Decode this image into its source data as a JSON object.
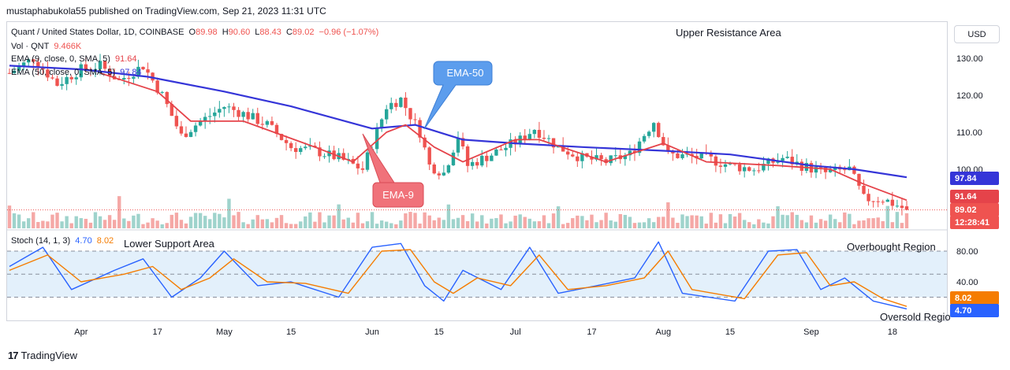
{
  "header": {
    "publisher_line": "mustaphabukola55 published on TradingView.com, Sep 21, 2023 11:31 UTC"
  },
  "legend": {
    "symbol": "Quant / United States Dollar, 1D, COINBASE",
    "o_label": "O",
    "o_value": "89.98",
    "h_label": "H",
    "h_value": "90.60",
    "l_label": "L",
    "l_value": "88.43",
    "c_label": "C",
    "c_value": "89.02",
    "change": "−0.96 (−1.07%)",
    "vol_label": "Vol · QNT",
    "vol_value": "9.466K",
    "ema9_label": "EMA (9, close, 0, SMA, 5)",
    "ema9_value": "91.64",
    "ema50_label": "EMA (50, close, 0, SMA, 5)",
    "ema50_value": "97.84"
  },
  "stoch_legend": {
    "label": "Stoch (14, 1, 3)",
    "k_value": "4.70",
    "d_value": "8.02"
  },
  "currency_button": "USD",
  "badges": {
    "ema50": "97.84",
    "ema9": "91.64",
    "last_price": "89.02",
    "countdown": "12:28:41",
    "stoch_d": "8.02",
    "stoch_k": "4.70"
  },
  "annotations": {
    "upper_resistance": "Upper Resistance Area",
    "lower_support": "Lower Support Area",
    "overbought": "Overbought Region",
    "oversold": "Oversold Regio",
    "ema50_callout": "EMA-50",
    "ema9_callout": "EMA-9"
  },
  "footer": {
    "brand": "TradingView",
    "logo_glyph": "17"
  },
  "colors": {
    "up": "#26a69a",
    "down": "#ef5350",
    "ema9": "#e5434a",
    "ema50": "#3535d8",
    "stoch_k": "#2962ff",
    "stoch_d": "#f57c00",
    "callout_blue": "#5c9ded",
    "callout_red": "#f0727a"
  },
  "chart_data": [
    {
      "type": "candlestick",
      "title": "Quant / United States Dollar, 1D, COINBASE",
      "y_axis_ticks": [
        "130.00",
        "120.00",
        "110.00",
        "100.00"
      ],
      "ylim": [
        86,
        133
      ],
      "x_axis_ticks": [
        "Apr",
        "17",
        "May",
        "15",
        "Jun",
        "15",
        "Jul",
        "17",
        "Aug",
        "15",
        "Sep",
        "18"
      ],
      "last_ohlc": {
        "open": 89.98,
        "high": 90.6,
        "low": 88.43,
        "close": 89.02
      },
      "close_anchors": [
        {
          "date": "2023-03-17",
          "close": 126
        },
        {
          "date": "2023-03-22",
          "close": 130
        },
        {
          "date": "2023-03-27",
          "close": 123
        },
        {
          "date": "2023-04-01",
          "close": 127
        },
        {
          "date": "2023-04-05",
          "close": 128
        },
        {
          "date": "2023-04-09",
          "close": 124
        },
        {
          "date": "2023-04-14",
          "close": 128
        },
        {
          "date": "2023-04-18",
          "close": 120
        },
        {
          "date": "2023-04-22",
          "close": 109
        },
        {
          "date": "2023-04-25",
          "close": 112
        },
        {
          "date": "2023-05-01",
          "close": 117
        },
        {
          "date": "2023-05-05",
          "close": 115
        },
        {
          "date": "2023-05-10",
          "close": 112
        },
        {
          "date": "2023-05-15",
          "close": 106
        },
        {
          "date": "2023-05-20",
          "close": 105
        },
        {
          "date": "2023-05-25",
          "close": 103
        },
        {
          "date": "2023-05-30",
          "close": 100
        },
        {
          "date": "2023-06-04",
          "close": 117
        },
        {
          "date": "2023-06-07",
          "close": 119
        },
        {
          "date": "2023-06-11",
          "close": 110
        },
        {
          "date": "2023-06-13",
          "close": 101
        },
        {
          "date": "2023-06-16",
          "close": 99
        },
        {
          "date": "2023-06-19",
          "close": 109
        },
        {
          "date": "2023-06-21",
          "close": 101
        },
        {
          "date": "2023-06-26",
          "close": 104
        },
        {
          "date": "2023-07-02",
          "close": 108
        },
        {
          "date": "2023-07-05",
          "close": 111
        },
        {
          "date": "2023-07-10",
          "close": 106
        },
        {
          "date": "2023-07-15",
          "close": 103
        },
        {
          "date": "2023-07-20",
          "close": 102
        },
        {
          "date": "2023-07-25",
          "close": 104
        },
        {
          "date": "2023-07-30",
          "close": 113
        },
        {
          "date": "2023-08-02",
          "close": 104
        },
        {
          "date": "2023-08-10",
          "close": 103
        },
        {
          "date": "2023-08-15",
          "close": 101
        },
        {
          "date": "2023-08-20",
          "close": 100
        },
        {
          "date": "2023-08-26",
          "close": 103
        },
        {
          "date": "2023-08-30",
          "close": 101
        },
        {
          "date": "2023-09-04",
          "close": 99
        },
        {
          "date": "2023-09-09",
          "close": 100
        },
        {
          "date": "2023-09-12",
          "close": 92
        },
        {
          "date": "2023-09-16",
          "close": 92
        },
        {
          "date": "2023-09-21",
          "close": 89.02
        }
      ],
      "ema9": [
        {
          "date": "2023-04-05",
          "value": 126
        },
        {
          "date": "2023-04-17",
          "value": 121
        },
        {
          "date": "2023-04-24",
          "value": 113
        },
        {
          "date": "2023-05-05",
          "value": 113
        },
        {
          "date": "2023-05-20",
          "value": 106
        },
        {
          "date": "2023-05-28",
          "value": 102
        },
        {
          "date": "2023-06-04",
          "value": 110
        },
        {
          "date": "2023-06-08",
          "value": 112
        },
        {
          "date": "2023-06-14",
          "value": 106
        },
        {
          "date": "2023-06-20",
          "value": 102
        },
        {
          "date": "2023-07-01",
          "value": 108
        },
        {
          "date": "2023-07-06",
          "value": 108
        },
        {
          "date": "2023-07-20",
          "value": 102
        },
        {
          "date": "2023-08-01",
          "value": 107
        },
        {
          "date": "2023-08-10",
          "value": 102
        },
        {
          "date": "2023-08-25",
          "value": 101
        },
        {
          "date": "2023-09-05",
          "value": 100
        },
        {
          "date": "2023-09-12",
          "value": 96
        },
        {
          "date": "2023-09-21",
          "value": 91.64
        }
      ],
      "ema50": [
        {
          "date": "2023-03-17",
          "value": 128
        },
        {
          "date": "2023-04-01",
          "value": 127
        },
        {
          "date": "2023-04-15",
          "value": 125
        },
        {
          "date": "2023-05-01",
          "value": 121
        },
        {
          "date": "2023-05-15",
          "value": 117
        },
        {
          "date": "2023-06-01",
          "value": 111
        },
        {
          "date": "2023-06-10",
          "value": 112
        },
        {
          "date": "2023-06-20",
          "value": 108
        },
        {
          "date": "2023-07-01",
          "value": 107
        },
        {
          "date": "2023-07-15",
          "value": 106
        },
        {
          "date": "2023-08-01",
          "value": 105
        },
        {
          "date": "2023-08-15",
          "value": 104
        },
        {
          "date": "2023-09-01",
          "value": 101
        },
        {
          "date": "2023-09-10",
          "value": 100
        },
        {
          "date": "2023-09-21",
          "value": 97.84
        }
      ]
    },
    {
      "type": "line",
      "title": "Stoch (14, 1, 3)",
      "y_axis_ticks": [
        "80.00",
        "40.00"
      ],
      "ylim": [
        0,
        100
      ],
      "series": [
        {
          "name": "4.70",
          "values": [
            {
              "date": "2023-03-17",
              "value": 60
            },
            {
              "date": "2023-03-24",
              "value": 85
            },
            {
              "date": "2023-03-30",
              "value": 30
            },
            {
              "date": "2023-04-08",
              "value": 55
            },
            {
              "date": "2023-04-14",
              "value": 70
            },
            {
              "date": "2023-04-20",
              "value": 20
            },
            {
              "date": "2023-04-26",
              "value": 45
            },
            {
              "date": "2023-05-01",
              "value": 80
            },
            {
              "date": "2023-05-08",
              "value": 35
            },
            {
              "date": "2023-05-15",
              "value": 40
            },
            {
              "date": "2023-05-25",
              "value": 20
            },
            {
              "date": "2023-06-01",
              "value": 85
            },
            {
              "date": "2023-06-07",
              "value": 90
            },
            {
              "date": "2023-06-12",
              "value": 35
            },
            {
              "date": "2023-06-16",
              "value": 15
            },
            {
              "date": "2023-06-20",
              "value": 55
            },
            {
              "date": "2023-06-28",
              "value": 30
            },
            {
              "date": "2023-07-04",
              "value": 85
            },
            {
              "date": "2023-07-10",
              "value": 25
            },
            {
              "date": "2023-07-18",
              "value": 35
            },
            {
              "date": "2023-07-26",
              "value": 45
            },
            {
              "date": "2023-07-31",
              "value": 92
            },
            {
              "date": "2023-08-05",
              "value": 25
            },
            {
              "date": "2023-08-16",
              "value": 15
            },
            {
              "date": "2023-08-23",
              "value": 80
            },
            {
              "date": "2023-08-29",
              "value": 82
            },
            {
              "date": "2023-09-03",
              "value": 30
            },
            {
              "date": "2023-09-08",
              "value": 45
            },
            {
              "date": "2023-09-14",
              "value": 15
            },
            {
              "date": "2023-09-21",
              "value": 4.7
            }
          ]
        },
        {
          "name": "8.02",
          "values": [
            {
              "date": "2023-03-17",
              "value": 55
            },
            {
              "date": "2023-03-25",
              "value": 75
            },
            {
              "date": "2023-04-01",
              "value": 40
            },
            {
              "date": "2023-04-10",
              "value": 50
            },
            {
              "date": "2023-04-16",
              "value": 60
            },
            {
              "date": "2023-04-22",
              "value": 30
            },
            {
              "date": "2023-04-28",
              "value": 45
            },
            {
              "date": "2023-05-03",
              "value": 70
            },
            {
              "date": "2023-05-10",
              "value": 40
            },
            {
              "date": "2023-05-18",
              "value": 38
            },
            {
              "date": "2023-05-27",
              "value": 25
            },
            {
              "date": "2023-06-03",
              "value": 80
            },
            {
              "date": "2023-06-09",
              "value": 82
            },
            {
              "date": "2023-06-14",
              "value": 40
            },
            {
              "date": "2023-06-18",
              "value": 25
            },
            {
              "date": "2023-06-23",
              "value": 45
            },
            {
              "date": "2023-06-30",
              "value": 35
            },
            {
              "date": "2023-07-06",
              "value": 75
            },
            {
              "date": "2023-07-12",
              "value": 30
            },
            {
              "date": "2023-07-20",
              "value": 35
            },
            {
              "date": "2023-07-28",
              "value": 45
            },
            {
              "date": "2023-08-02",
              "value": 80
            },
            {
              "date": "2023-08-07",
              "value": 30
            },
            {
              "date": "2023-08-18",
              "value": 18
            },
            {
              "date": "2023-08-25",
              "value": 75
            },
            {
              "date": "2023-08-31",
              "value": 78
            },
            {
              "date": "2023-09-05",
              "value": 35
            },
            {
              "date": "2023-09-10",
              "value": 40
            },
            {
              "date": "2023-09-16",
              "value": 18
            },
            {
              "date": "2023-09-21",
              "value": 8.02
            }
          ]
        }
      ],
      "bands": [
        80,
        50,
        20
      ]
    }
  ]
}
